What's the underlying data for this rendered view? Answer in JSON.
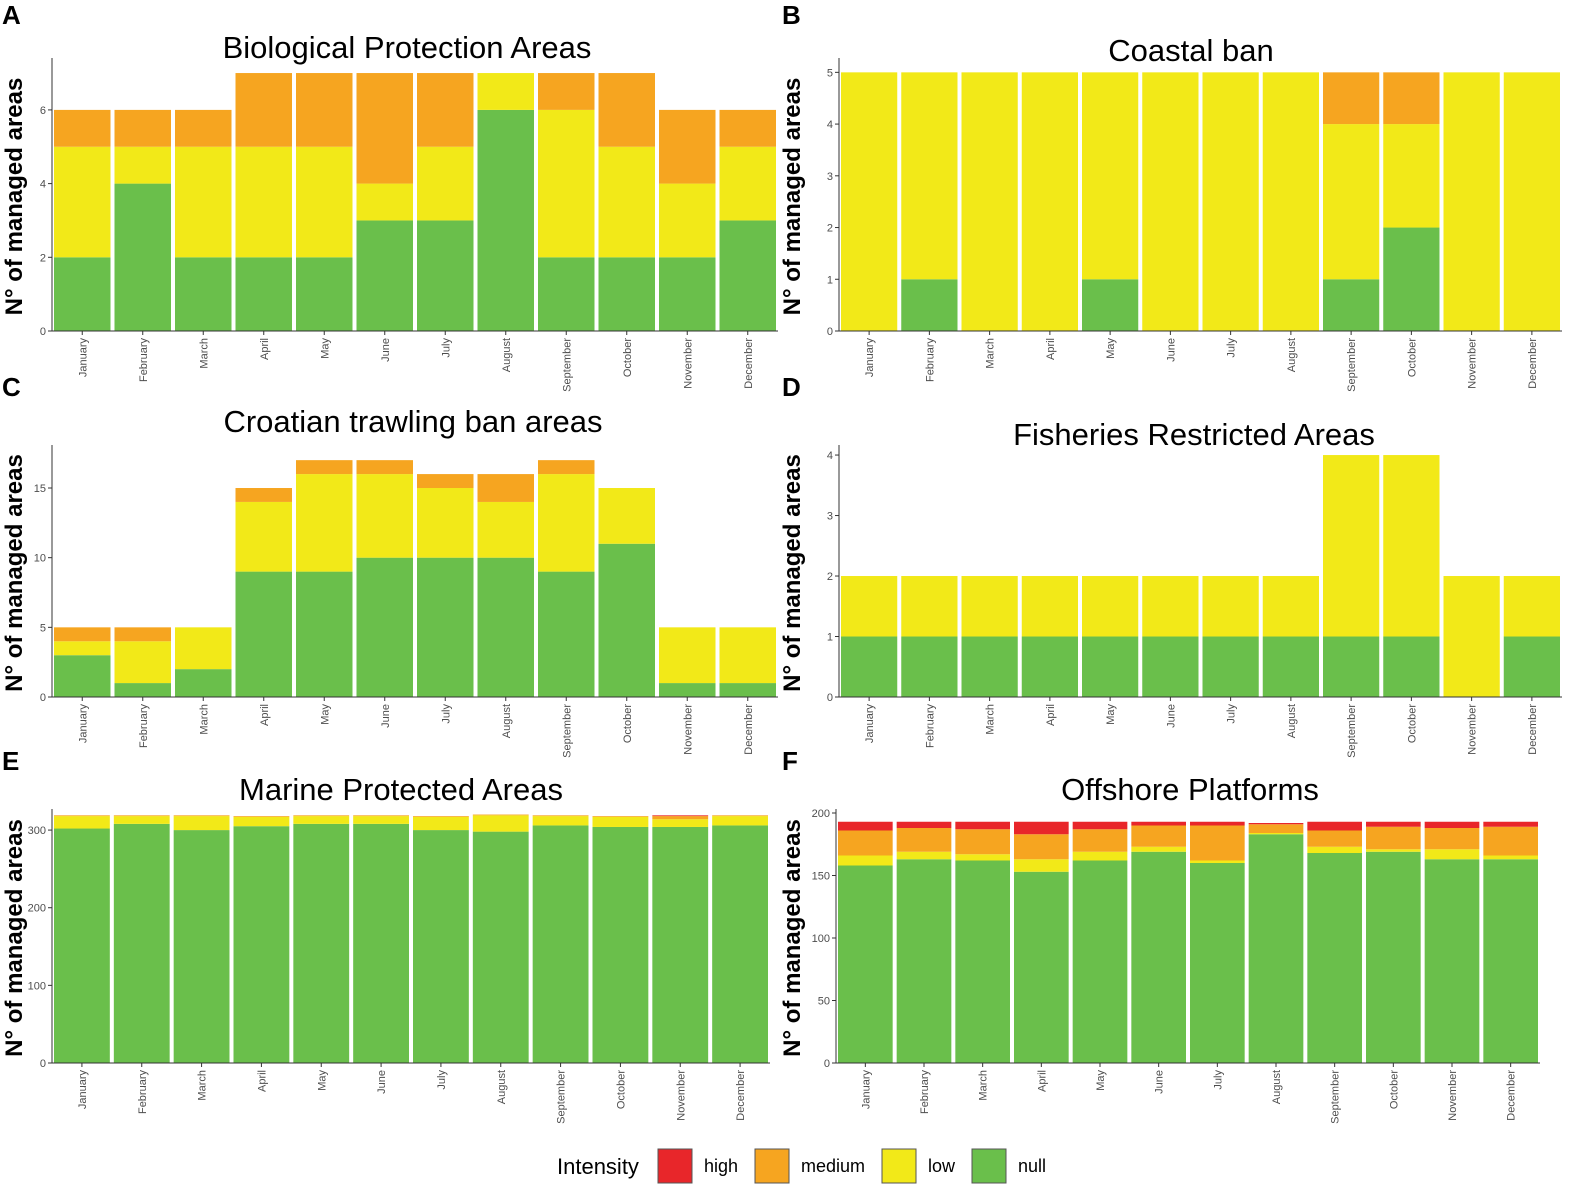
{
  "colors": {
    "high": "#e8262a",
    "medium": "#f6a520",
    "low": "#f2e918",
    "null": "#6abf4b"
  },
  "legend": {
    "title": "Intensity",
    "items": [
      {
        "key": "high",
        "label": "high"
      },
      {
        "key": "medium",
        "label": "medium"
      },
      {
        "key": "low",
        "label": "low"
      },
      {
        "key": "null",
        "label": "null"
      }
    ]
  },
  "chart_data": [
    {
      "letter": "A",
      "type": "bar",
      "stacked": true,
      "title": "Biological Protection Areas",
      "xlabel": "",
      "ylabel": "N° of managed areas",
      "ylim": [
        0,
        7.3
      ],
      "yticks": [
        0,
        2,
        4,
        6
      ],
      "categories": [
        "January",
        "February",
        "March",
        "April",
        "May",
        "June",
        "July",
        "August",
        "September",
        "October",
        "November",
        "December"
      ],
      "series": [
        {
          "name": "null",
          "values": [
            2,
            4,
            2,
            2,
            2,
            3,
            3,
            6,
            2,
            2,
            2,
            3
          ]
        },
        {
          "name": "low",
          "values": [
            3,
            1,
            3,
            3,
            3,
            1,
            2,
            1,
            4,
            3,
            2,
            2
          ]
        },
        {
          "name": "medium",
          "values": [
            1,
            1,
            1,
            2,
            2,
            3,
            2,
            0,
            1,
            2,
            2,
            1
          ]
        },
        {
          "name": "high",
          "values": [
            0,
            0,
            0,
            0,
            0,
            0,
            0,
            0,
            0,
            0,
            0,
            0
          ]
        }
      ]
    },
    {
      "letter": "B",
      "type": "bar",
      "stacked": true,
      "title": "Coastal ban",
      "xlabel": "",
      "ylabel": "N° of managed areas",
      "ylim": [
        0,
        5.2
      ],
      "yticks": [
        0,
        1,
        2,
        3,
        4,
        5
      ],
      "categories": [
        "January",
        "February",
        "March",
        "April",
        "May",
        "June",
        "July",
        "August",
        "September",
        "October",
        "November",
        "December"
      ],
      "series": [
        {
          "name": "null",
          "values": [
            0,
            1,
            0,
            0,
            1,
            0,
            0,
            0,
            1,
            2,
            0,
            0
          ]
        },
        {
          "name": "low",
          "values": [
            5,
            4,
            5,
            5,
            4,
            5,
            5,
            5,
            3,
            2,
            5,
            5
          ]
        },
        {
          "name": "medium",
          "values": [
            0,
            0,
            0,
            0,
            0,
            0,
            0,
            0,
            1,
            1,
            0,
            0
          ]
        },
        {
          "name": "high",
          "values": [
            0,
            0,
            0,
            0,
            0,
            0,
            0,
            0,
            0,
            0,
            0,
            0
          ]
        }
      ]
    },
    {
      "letter": "C",
      "type": "bar",
      "stacked": true,
      "title": "Croatian trawling ban areas",
      "xlabel": "",
      "ylabel": "N° of managed areas",
      "ylim": [
        0,
        17.8
      ],
      "yticks": [
        0,
        5,
        10,
        15
      ],
      "categories": [
        "January",
        "February",
        "March",
        "April",
        "May",
        "June",
        "July",
        "August",
        "September",
        "October",
        "November",
        "December"
      ],
      "series": [
        {
          "name": "null",
          "values": [
            3,
            1,
            2,
            9,
            9,
            10,
            10,
            10,
            9,
            11,
            1,
            1
          ]
        },
        {
          "name": "low",
          "values": [
            1,
            3,
            3,
            5,
            7,
            6,
            5,
            4,
            7,
            4,
            4,
            4
          ]
        },
        {
          "name": "medium",
          "values": [
            1,
            1,
            0,
            1,
            1,
            1,
            1,
            2,
            1,
            0,
            0,
            0
          ]
        },
        {
          "name": "high",
          "values": [
            0,
            0,
            0,
            0,
            0,
            0,
            0,
            0,
            0,
            0,
            0,
            0
          ]
        }
      ]
    },
    {
      "letter": "D",
      "type": "bar",
      "stacked": true,
      "title": "Fisheries Restricted Areas",
      "xlabel": "",
      "ylabel": "N° of managed areas",
      "ylim": [
        0,
        4.1
      ],
      "yticks": [
        0,
        1,
        2,
        3,
        4
      ],
      "categories": [
        "January",
        "February",
        "March",
        "April",
        "May",
        "June",
        "July",
        "August",
        "September",
        "October",
        "November",
        "December"
      ],
      "series": [
        {
          "name": "null",
          "values": [
            1,
            1,
            1,
            1,
            1,
            1,
            1,
            1,
            1,
            1,
            0,
            1
          ]
        },
        {
          "name": "low",
          "values": [
            1,
            1,
            1,
            1,
            1,
            1,
            1,
            1,
            3,
            3,
            2,
            1
          ]
        },
        {
          "name": "medium",
          "values": [
            0,
            0,
            0,
            0,
            0,
            0,
            0,
            0,
            0,
            0,
            0,
            0
          ]
        },
        {
          "name": "high",
          "values": [
            0,
            0,
            0,
            0,
            0,
            0,
            0,
            0,
            0,
            0,
            0,
            0
          ]
        }
      ]
    },
    {
      "letter": "E",
      "type": "bar",
      "stacked": true,
      "title": "Marine Protected Areas",
      "xlabel": "",
      "ylabel": "N° of managed areas",
      "ylim": [
        0,
        322
      ],
      "yticks": [
        0,
        100,
        200,
        300
      ],
      "categories": [
        "January",
        "February",
        "March",
        "April",
        "May",
        "June",
        "July",
        "August",
        "September",
        "October",
        "November",
        "December"
      ],
      "series": [
        {
          "name": "null",
          "values": [
            302,
            308,
            300,
            305,
            308,
            308,
            300,
            298,
            306,
            304,
            304,
            306
          ]
        },
        {
          "name": "low",
          "values": [
            16,
            10,
            18,
            12,
            10,
            10,
            17,
            21,
            12,
            13,
            10,
            12
          ]
        },
        {
          "name": "medium",
          "values": [
            1,
            1,
            1,
            1,
            1,
            1,
            1,
            1,
            1,
            1,
            4,
            1
          ]
        },
        {
          "name": "high",
          "values": [
            0,
            0,
            0,
            0,
            0,
            0,
            0,
            0,
            0,
            0,
            1,
            0
          ]
        }
      ]
    },
    {
      "letter": "F",
      "type": "bar",
      "stacked": true,
      "title": "Offshore Platforms",
      "xlabel": "",
      "ylabel": "N° of managed areas",
      "ylim": [
        0,
        200
      ],
      "yticks": [
        0,
        50,
        100,
        150,
        200
      ],
      "categories": [
        "January",
        "February",
        "March",
        "April",
        "May",
        "June",
        "July",
        "August",
        "September",
        "October",
        "November",
        "December"
      ],
      "series": [
        {
          "name": "null",
          "values": [
            158,
            163,
            162,
            153,
            162,
            169,
            160,
            183,
            168,
            169,
            163,
            163
          ]
        },
        {
          "name": "low",
          "values": [
            8,
            6,
            5,
            10,
            7,
            4,
            2,
            1,
            5,
            2,
            8,
            3
          ]
        },
        {
          "name": "medium",
          "values": [
            20,
            19,
            20,
            20,
            18,
            17,
            28,
            7,
            13,
            18,
            17,
            23
          ]
        },
        {
          "name": "high",
          "values": [
            7,
            5,
            6,
            10,
            6,
            3,
            3,
            1,
            7,
            4,
            5,
            4
          ]
        }
      ]
    }
  ]
}
